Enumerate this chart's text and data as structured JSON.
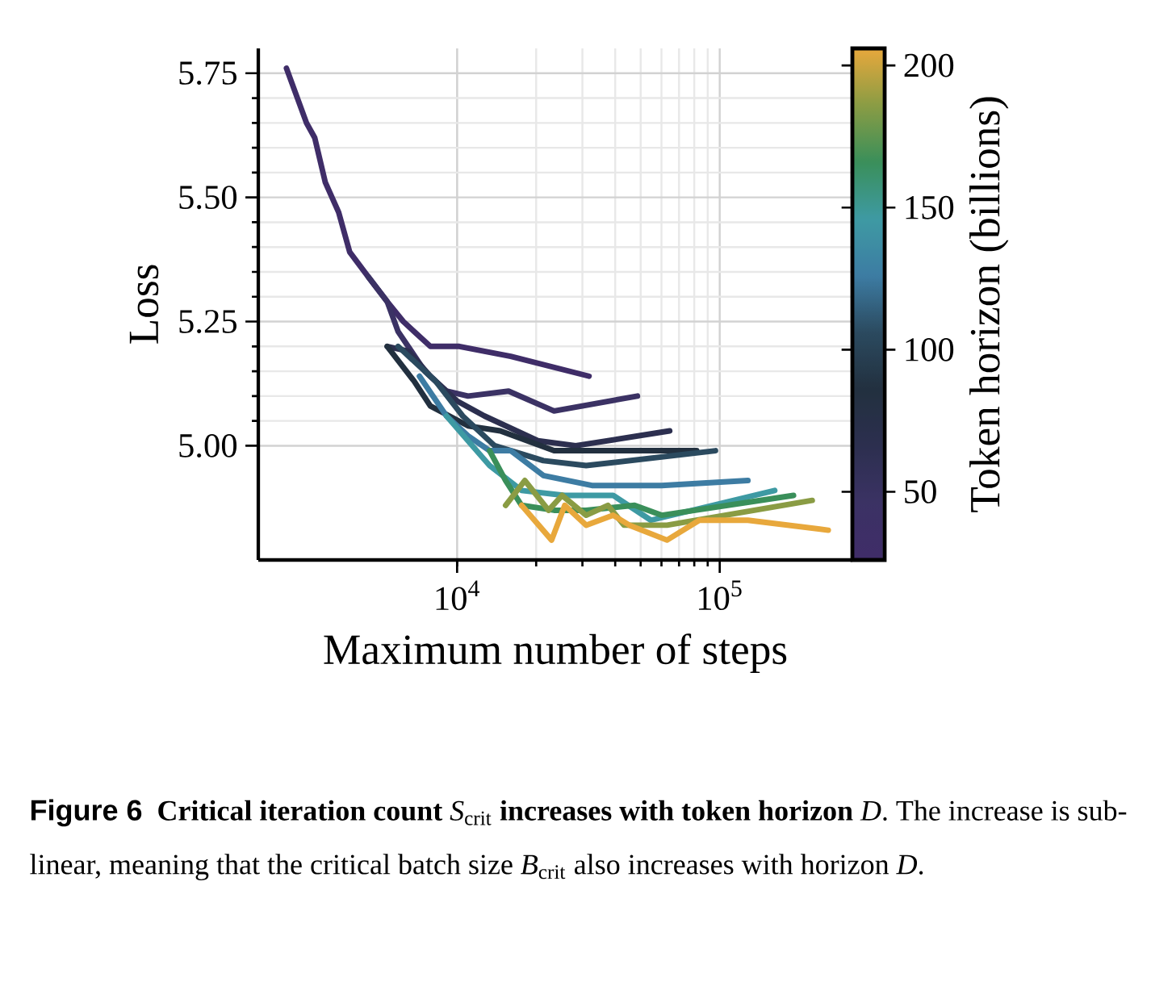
{
  "chart_data": {
    "type": "line",
    "xlabel": "Maximum number of steps",
    "ylabel": "Loss",
    "clabel": "Token horizon (billions)",
    "log": "x",
    "grid": true,
    "xlim": [
      1750,
      320000
    ],
    "ylim": [
      4.77,
      5.8
    ],
    "xticks": [
      {
        "value": 10000,
        "label": "10$^{4}$"
      },
      {
        "value": 100000,
        "label": "10$^{5}$"
      }
    ],
    "yticks": [
      {
        "value": 5,
        "label": "5.00"
      },
      5.25,
      {
        "value": 5.5,
        "label": "5.50"
      },
      5.75
    ],
    "clim": [
      26,
      206
    ],
    "cticks": [
      50,
      100,
      150,
      200
    ],
    "annotations": [
      "Figure 6",
      "**Critical iteration count** *S*$_{crit}$ **increases with token horizon** *D*. The increase is sub-linear, meaning that the critical batch size *B*$_{crit}$ also increases with horizon *D*."
    ],
    "series": [
      {
        "color": "#3f2d68",
        "x": [
          2240,
          2670,
          2870,
          3150,
          3540,
          3900,
          4590,
          5420,
          6240,
          7910,
          10200,
          16000,
          31800
        ],
        "values": [
          5.76,
          5.65,
          5.62,
          5.53,
          5.47,
          5.39,
          5.34,
          5.29,
          5.25,
          5.2,
          5.2,
          5.18,
          5.14
        ]
      },
      {
        "color": "#3b3264",
        "x": [
          4590,
          5420,
          5960,
          7540,
          9110,
          11000,
          15700,
          23400,
          48600
        ],
        "values": [
          5.34,
          5.29,
          5.23,
          5.15,
          5.11,
          5.1,
          5.11,
          5.07,
          5.1
        ]
      },
      {
        "color": "#2c2f4f",
        "x": [
          5420,
          6540,
          7910,
          10000,
          12700,
          20300,
          28300,
          64500
        ],
        "values": [
          5.2,
          5.19,
          5.14,
          5.09,
          5.06,
          5.01,
          5.0,
          5.03
        ]
      },
      {
        "color": "#22303f",
        "x": [
          5420,
          6860,
          7910,
          11000,
          14600,
          23400,
          81700
        ],
        "values": [
          5.2,
          5.13,
          5.08,
          5.04,
          5.03,
          4.99,
          4.99
        ]
      },
      {
        "color": "#2b4a5f",
        "x": [
          5960,
          8280,
          10500,
          13900,
          21300,
          31000,
          96300
        ],
        "values": [
          5.2,
          5.13,
          5.06,
          5.0,
          4.97,
          4.96,
          4.99
        ]
      },
      {
        "color": "#3d7ca3",
        "x": [
          7190,
          9110,
          11000,
          13300,
          16000,
          21300,
          32600,
          60100,
          128000
        ],
        "values": [
          5.14,
          5.06,
          5.02,
          4.99,
          4.99,
          4.94,
          4.92,
          4.92,
          4.93
        ]
      },
      {
        "color": "#3e9aa3",
        "x": [
          9110,
          11000,
          13300,
          17600,
          25700,
          39300,
          54700,
          162000
        ],
        "values": [
          5.06,
          5.01,
          4.96,
          4.91,
          4.9,
          4.9,
          4.85,
          4.91
        ]
      },
      {
        "color": "#3a8f5a",
        "x": [
          13300,
          15300,
          17600,
          23400,
          31000,
          47400,
          60100,
          191000
        ],
        "values": [
          4.99,
          4.93,
          4.88,
          4.87,
          4.87,
          4.88,
          4.86,
          4.9
        ]
      },
      {
        "color": "#8a9c44",
        "x": [
          15300,
          18100,
          22300,
          25100,
          31000,
          37500,
          43200,
          63000,
          225000
        ],
        "values": [
          4.88,
          4.93,
          4.87,
          4.9,
          4.86,
          4.88,
          4.84,
          4.84,
          4.89
        ]
      },
      {
        "color": "#e8a83c",
        "x": [
          17600,
          22900,
          25700,
          31000,
          39300,
          45300,
          63000,
          83600,
          128000,
          259000
        ],
        "values": [
          4.88,
          4.81,
          4.88,
          4.84,
          4.86,
          4.84,
          4.81,
          4.85,
          4.85,
          4.83
        ]
      }
    ]
  }
}
